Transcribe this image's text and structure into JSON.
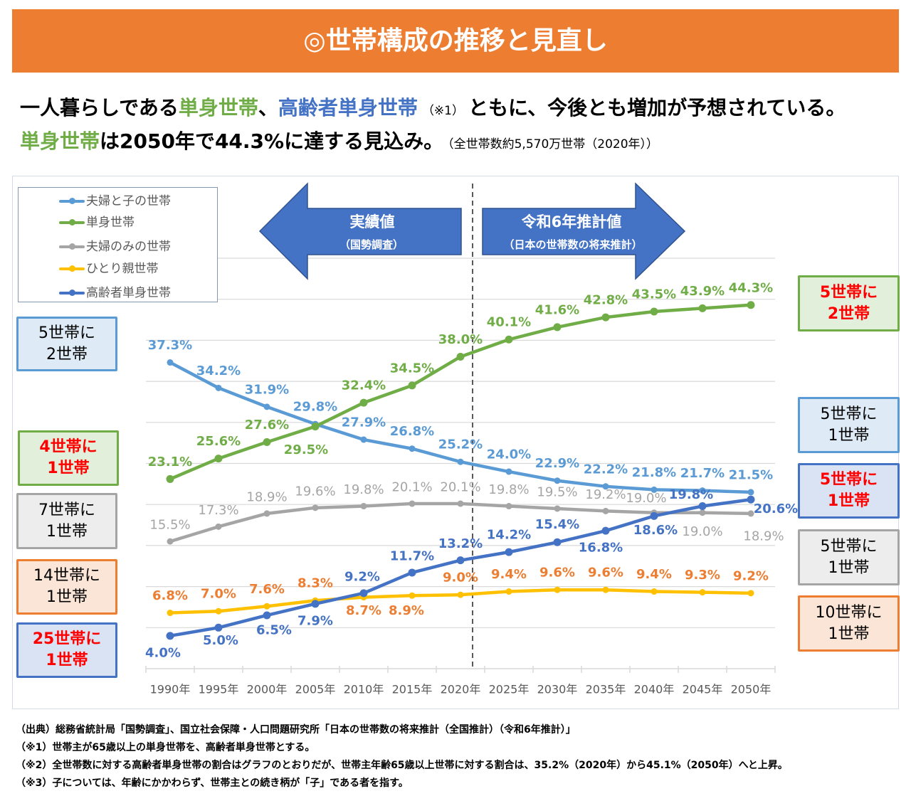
{
  "header": {
    "title": "◎世帯構成の推移と見直し"
  },
  "summary": {
    "line1": {
      "prefix": "一人暮らしである",
      "single": "単身世帯",
      "sep": "、",
      "elderly": "高齢者単身世帯",
      "note": "（※1）",
      "suffix": "ともに、今後とも増加が予想されている。"
    },
    "line2": {
      "single": "単身世帯",
      "text": "は2050年で44.3%に達する見込み。",
      "note": "（全世帯数約5,570万世帯（2020年））"
    }
  },
  "arrows": {
    "actual": {
      "title": "実績値",
      "sub": "（国勢調査）",
      "color": "#4472C4"
    },
    "projection": {
      "title": "令和6年推計値",
      "sub": "（日本の世帯数の将来推計）",
      "color": "#4472C4"
    }
  },
  "ratio_boxes": {
    "left": [
      {
        "line1": "5世帯に",
        "line2": "2世帯",
        "border_color": "#5B9BD5",
        "fill_color": "#DEEBF7",
        "text_color": "#000000",
        "highlight": false
      },
      {
        "line1": "4世帯に",
        "line2": "1世帯",
        "border_color": "#70AD47",
        "fill_color": "#E2EFDA",
        "text_color": "#FF0000",
        "highlight": true
      },
      {
        "line1": "7世帯に",
        "line2": "1世帯",
        "border_color": "#A5A5A5",
        "fill_color": "#EDEDED",
        "text_color": "#000000",
        "highlight": false
      },
      {
        "line1": "14世帯に",
        "line2": "1世帯",
        "border_color": "#ED7D31",
        "fill_color": "#FBE5D6",
        "text_color": "#000000",
        "highlight": false
      },
      {
        "line1": "25世帯に",
        "line2": "1世帯",
        "border_color": "#4472C4",
        "fill_color": "#DAE3F3",
        "text_color": "#FF0000",
        "highlight": true
      }
    ],
    "right": [
      {
        "line1": "5世帯に",
        "line2": "2世帯",
        "border_color": "#70AD47",
        "fill_color": "#E2EFDA",
        "text_color": "#FF0000",
        "highlight": true
      },
      {
        "line1": "5世帯に",
        "line2": "1世帯",
        "border_color": "#5B9BD5",
        "fill_color": "#DEEBF7",
        "text_color": "#000000",
        "highlight": false
      },
      {
        "line1": "5世帯に",
        "line2": "1世帯",
        "border_color": "#4472C4",
        "fill_color": "#DAE3F3",
        "text_color": "#FF0000",
        "highlight": true
      },
      {
        "line1": "5世帯に",
        "line2": "1世帯",
        "border_color": "#A5A5A5",
        "fill_color": "#EDEDED",
        "text_color": "#000000",
        "highlight": false
      },
      {
        "line1": "10世帯に",
        "line2": "1世帯",
        "border_color": "#ED7D31",
        "fill_color": "#FBE5D6",
        "text_color": "#000000",
        "highlight": false
      }
    ]
  },
  "footer": {
    "notes": [
      "（出典）総務省統計局「国勢調査」、国立社会保障・人口問題研究所「日本の世帯数の将来推計（全国推計）（令和6年推計）」",
      "（※1）世帯主が65歳以上の単身世帯を、高齢者単身世帯とする。",
      "（※2）全世帯数に対する高齢者単身世帯の割合はグラフのとおりだが、世帯主年齢65歳以上世帯に対する割合は、35.2%（2020年）から45.1%（2050年）へと上昇。",
      "（※3）子については、年齢にかかわらず、世帯主との続き柄が「子」である者を指す。"
    ]
  },
  "chart_data": {
    "type": "line",
    "title": "",
    "xlabel": "",
    "ylabel": "",
    "categories": [
      "1990年",
      "1995年",
      "2000年",
      "2005年",
      "2010年",
      "2015年",
      "2020年",
      "2025年",
      "2030年",
      "2035年",
      "2040年",
      "2045年",
      "2050年"
    ],
    "ylim": [
      0,
      50
    ],
    "y_grid_step": 5,
    "grid": true,
    "y_tick_labels_shown": false,
    "legend_position": "top-left",
    "divider_after": "2020年",
    "divider_color": "#595959",
    "axis_label_color": "#595959",
    "gridline_color": "#D9D9D9",
    "series": [
      {
        "name": "夫婦と子の世帯",
        "color": "#5B9BD5",
        "label_color": "#5B9BD5",
        "values": [
          37.3,
          34.2,
          31.9,
          29.8,
          27.9,
          26.8,
          25.2,
          24.0,
          22.9,
          22.2,
          21.8,
          21.7,
          21.5
        ],
        "labels": [
          "37.3%",
          "34.2%",
          "31.9%",
          "29.8%",
          "27.9%",
          "26.8%",
          "25.2%",
          "24.0%",
          "22.9%",
          "22.2%",
          "21.8%",
          "21.7%",
          "21.5%"
        ]
      },
      {
        "name": "単身世帯",
        "color": "#70AD47",
        "label_color": "#70AD47",
        "values": [
          23.1,
          25.6,
          27.6,
          29.5,
          32.4,
          34.5,
          38.0,
          40.1,
          41.6,
          42.8,
          43.5,
          43.9,
          44.3
        ],
        "labels": [
          "23.1%",
          "25.6%",
          "27.6%",
          "29.5%",
          "32.4%",
          "34.5%",
          "38.0%",
          "40.1%",
          "41.6%",
          "42.8%",
          "43.5%",
          "43.9%",
          "44.3%"
        ]
      },
      {
        "name": "夫婦のみの世帯",
        "color": "#A5A5A5",
        "label_color": "#A5A5A5",
        "values": [
          15.5,
          17.3,
          18.9,
          19.6,
          19.8,
          20.1,
          20.1,
          19.8,
          19.5,
          19.2,
          19.0,
          19.0,
          18.9
        ],
        "labels": [
          "15.5%",
          "17.3%",
          "18.9%",
          "19.6%",
          "19.8%",
          "20.1%",
          "20.1%",
          "19.8%",
          "19.5%",
          "19.2%",
          "19.0%",
          "19.0%",
          "18.9%"
        ]
      },
      {
        "name": "ひとり親世帯",
        "color": "#FFC000",
        "label_color": "#ED7D31",
        "values": [
          6.8,
          7.0,
          7.6,
          8.3,
          8.7,
          8.9,
          9.0,
          9.4,
          9.6,
          9.6,
          9.4,
          9.3,
          9.2
        ],
        "labels": [
          "6.8%",
          "7.0%",
          "7.6%",
          "8.3%",
          "8.7%",
          "8.9%",
          "9.0%",
          "9.4%",
          "9.6%",
          "9.6%",
          "9.4%",
          "9.3%",
          "9.2%"
        ]
      },
      {
        "name": "高齢者単身世帯",
        "color": "#4472C4",
        "label_color": "#4472C4",
        "values": [
          4.0,
          5.0,
          6.5,
          7.9,
          9.2,
          11.7,
          13.2,
          14.2,
          15.4,
          16.8,
          18.6,
          19.8,
          20.6
        ],
        "labels": [
          "4.0%",
          "5.0%",
          "6.5%",
          "7.9%",
          "9.2%",
          "11.7%",
          "13.2%",
          "14.2%",
          "15.4%",
          "16.8%",
          "18.6%",
          "19.8%",
          "20.6%"
        ]
      }
    ]
  }
}
